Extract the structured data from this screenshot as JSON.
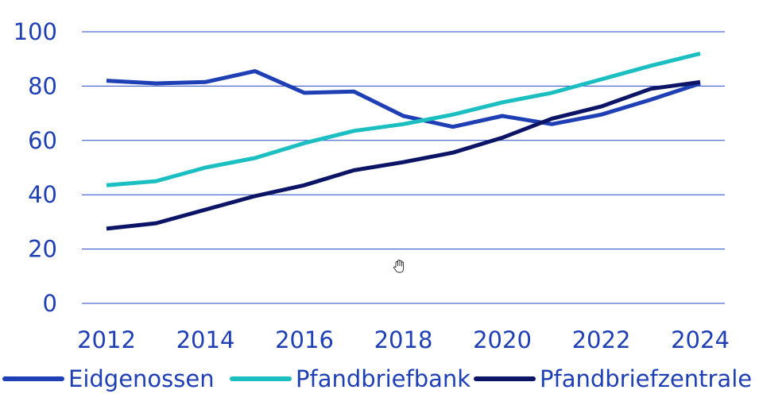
{
  "chart_data": {
    "type": "line",
    "x": [
      2012,
      2013,
      2014,
      2015,
      2016,
      2017,
      2018,
      2019,
      2020,
      2021,
      2022,
      2023,
      2024
    ],
    "xticks": [
      2012,
      2014,
      2016,
      2018,
      2020,
      2022,
      2024
    ],
    "yticks": [
      0,
      20,
      40,
      60,
      80,
      100
    ],
    "ylim": [
      0,
      100
    ],
    "xlim": [
      2012,
      2024
    ],
    "grid": true,
    "legend_position": "bottom",
    "series": [
      {
        "name": "Eidgenossen",
        "color": "#1f3fb4",
        "values": [
          82,
          81,
          81.5,
          85.5,
          77.5,
          78,
          69,
          65,
          69,
          66,
          69.5,
          75,
          81
        ]
      },
      {
        "name": "Pfandbriefbank",
        "color": "#1bbfc2",
        "values": [
          43.5,
          45,
          50,
          53.5,
          59,
          63.5,
          66,
          69.5,
          74,
          77.5,
          82.5,
          87.5,
          92
        ]
      },
      {
        "name": "Pfandbriefzentrale",
        "color": "#0c1466",
        "values": [
          27.5,
          29.5,
          34.5,
          39.5,
          43.5,
          49,
          52,
          55.5,
          61,
          68,
          72.5,
          79,
          81.5
        ]
      }
    ]
  }
}
